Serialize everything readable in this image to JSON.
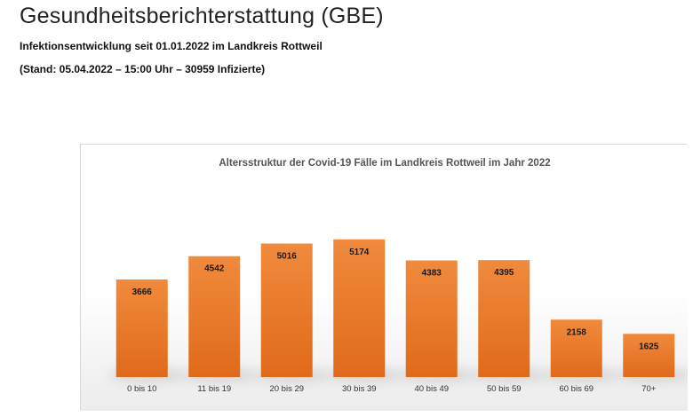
{
  "header": {
    "title": "Gesundheitsberichterstattung (GBE)",
    "subtitle_1": "Infektionsentwicklung seit 01.01.2022 im Landkreis Rottweil",
    "subtitle_2": "(Stand: 05.04.2022 – 15:00 Uhr – 30959 Infizierte)"
  },
  "chart_data": {
    "type": "bar",
    "title": "Altersstruktur der Covid-19 Fälle im Landkreis Rottweil im Jahr 2022",
    "categories": [
      "0 bis 10",
      "11 bis 19",
      "20 bis 29",
      "30 bis 39",
      "40 bis 49",
      "50 bis 59",
      "60 bis 69",
      "70+"
    ],
    "values": [
      3666,
      4542,
      5016,
      5174,
      4383,
      4395,
      2158,
      1625
    ],
    "xlabel": "",
    "ylabel": "",
    "ylim": [
      0,
      6500
    ],
    "grid": false,
    "legend": "none",
    "bar_color_top": "#f08a3c",
    "bar_color_bottom": "#e06a1b"
  }
}
